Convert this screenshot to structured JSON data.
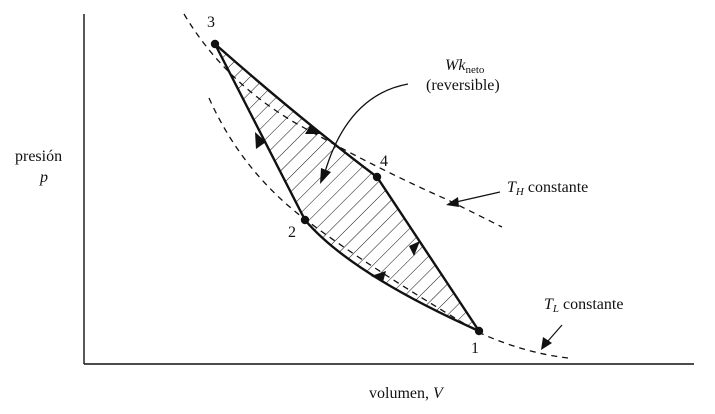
{
  "axes": {
    "y_label_line1": "presión",
    "y_label_line2": "p",
    "x_label_text": "volumen,",
    "x_label_var": "V"
  },
  "points": {
    "p1": "1",
    "p2": "2",
    "p3": "3",
    "p4": "4"
  },
  "annotations": {
    "work_var": "Wk",
    "work_sub": "neto",
    "work_note": "(reversible)",
    "th_var": "T",
    "th_sub": "H",
    "th_text": "constante",
    "tl_var": "T",
    "tl_sub": "L",
    "tl_text": "constante"
  }
}
